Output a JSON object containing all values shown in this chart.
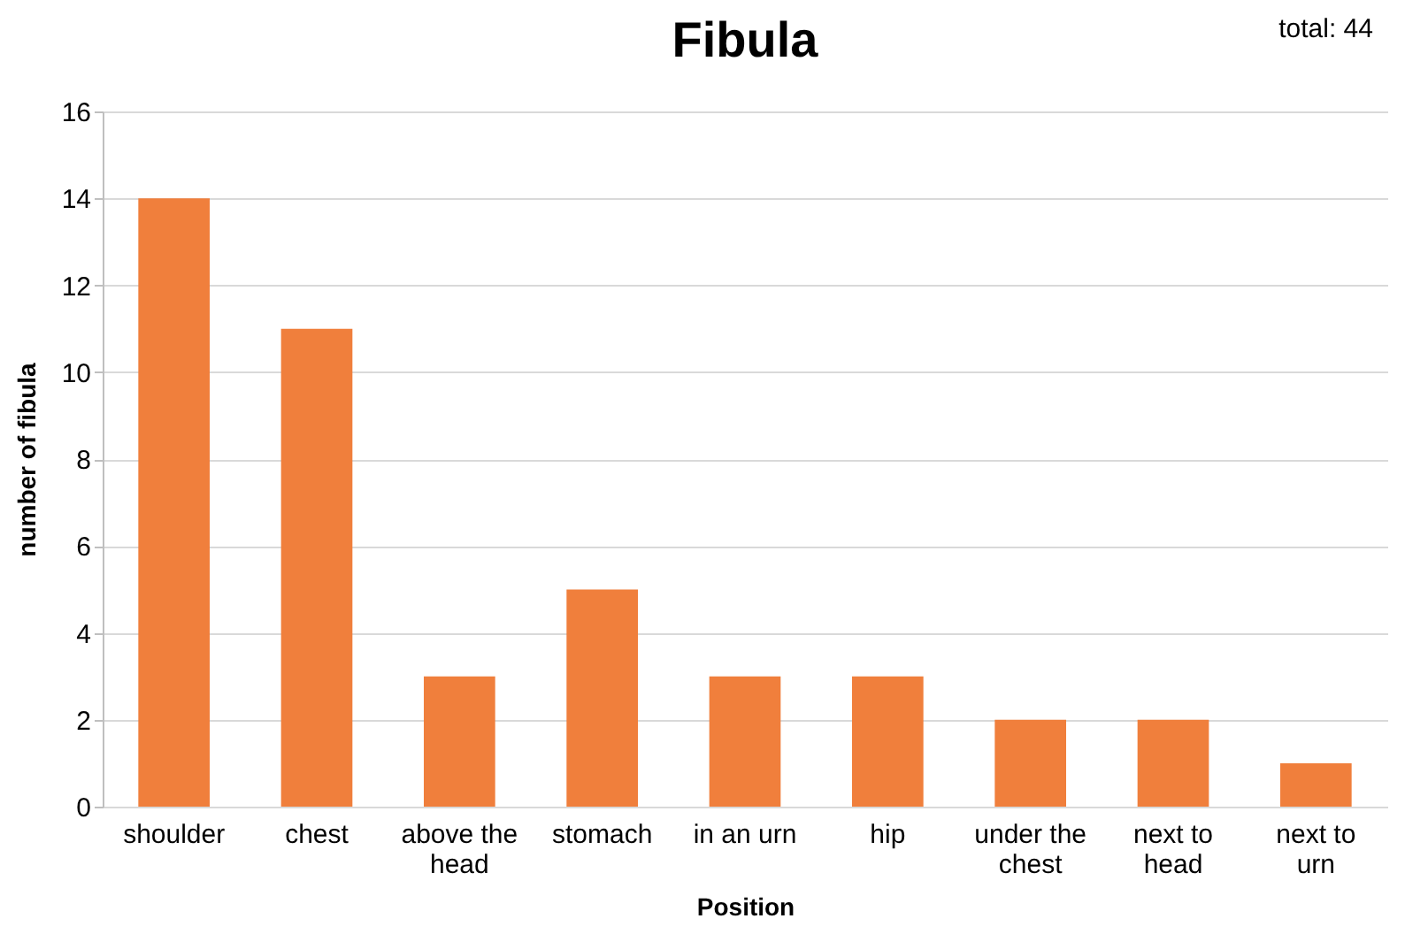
{
  "chart_data": {
    "type": "bar",
    "title": "Fibula",
    "xlabel": "Position",
    "ylabel": "number of fibula",
    "categories": [
      "shoulder",
      "chest",
      "above the head",
      "stomach",
      "in an urn",
      "hip",
      "under the chest",
      "next to head",
      "next to urn"
    ],
    "values": [
      14,
      11,
      3,
      5,
      3,
      3,
      2,
      2,
      1
    ],
    "color": "#f07f3c",
    "ylim": [
      0,
      16
    ],
    "yticks": [
      0,
      2,
      4,
      6,
      8,
      10,
      12,
      14,
      16
    ],
    "grid": "y",
    "annotations": [
      "total: 44"
    ]
  }
}
